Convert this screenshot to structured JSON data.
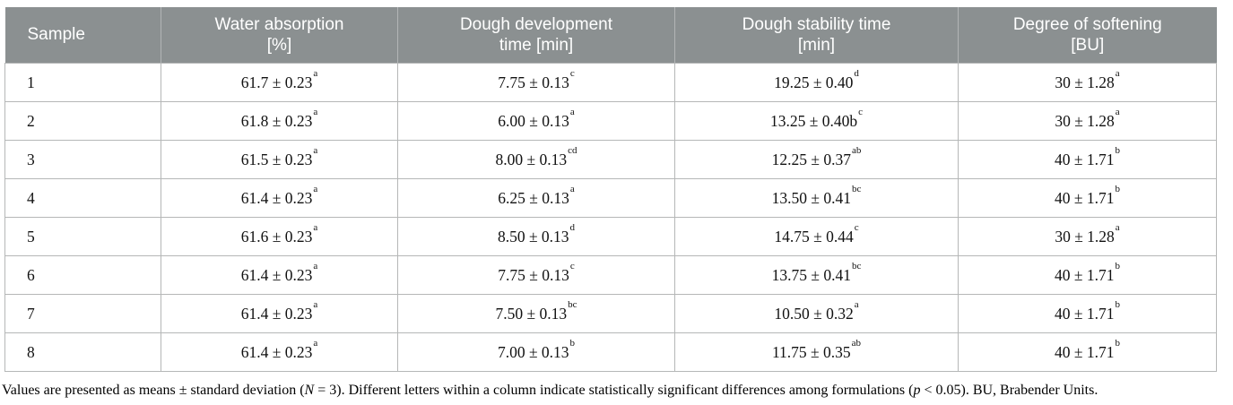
{
  "table": {
    "columns": [
      {
        "line1": "Sample",
        "line2": ""
      },
      {
        "line1": "Water absorption",
        "line2": "[%]"
      },
      {
        "line1": "Dough development",
        "line2": "time [min]"
      },
      {
        "line1": "Dough stability time",
        "line2": "[min]"
      },
      {
        "line1": "Degree of softening",
        "line2": "[BU]"
      }
    ],
    "rows": [
      {
        "sample": "1",
        "water": {
          "text": "61.7 ± 0.23",
          "sup": "a"
        },
        "development": {
          "text": "7.75 ± 0.13",
          "sup": "c"
        },
        "stability": {
          "text": "19.25 ± 0.40",
          "sup": "d"
        },
        "softening": {
          "text": "30 ± 1.28",
          "sup": "a"
        }
      },
      {
        "sample": "2",
        "water": {
          "text": "61.8 ± 0.23",
          "sup": "a"
        },
        "development": {
          "text": "6.00 ± 0.13",
          "sup": "a"
        },
        "stability": {
          "text": "13.25 ± 0.40b",
          "sup": "c"
        },
        "softening": {
          "text": "30 ± 1.28",
          "sup": "a"
        }
      },
      {
        "sample": "3",
        "water": {
          "text": "61.5 ± 0.23",
          "sup": "a"
        },
        "development": {
          "text": "8.00 ± 0.13",
          "sup": "cd"
        },
        "stability": {
          "text": "12.25 ± 0.37",
          "sup": "ab"
        },
        "softening": {
          "text": "40 ± 1.71",
          "sup": "b"
        }
      },
      {
        "sample": "4",
        "water": {
          "text": "61.4 ± 0.23",
          "sup": "a"
        },
        "development": {
          "text": "6.25 ± 0.13",
          "sup": "a"
        },
        "stability": {
          "text": "13.50 ± 0.41",
          "sup": "bc"
        },
        "softening": {
          "text": "40 ± 1.71",
          "sup": "b"
        }
      },
      {
        "sample": "5",
        "water": {
          "text": "61.6 ± 0.23",
          "sup": "a"
        },
        "development": {
          "text": "8.50 ± 0.13",
          "sup": "d"
        },
        "stability": {
          "text": "14.75 ± 0.44",
          "sup": "c"
        },
        "softening": {
          "text": "30 ± 1.28",
          "sup": "a"
        }
      },
      {
        "sample": "6",
        "water": {
          "text": "61.4 ± 0.23",
          "sup": "a"
        },
        "development": {
          "text": "7.75 ± 0.13",
          "sup": "c"
        },
        "stability": {
          "text": "13.75 ± 0.41",
          "sup": "bc"
        },
        "softening": {
          "text": "40 ± 1.71",
          "sup": "b"
        }
      },
      {
        "sample": "7",
        "water": {
          "text": "61.4 ± 0.23",
          "sup": "a"
        },
        "development": {
          "text": "7.50 ± 0.13",
          "sup": "bc"
        },
        "stability": {
          "text": "10.50 ± 0.32",
          "sup": "a"
        },
        "softening": {
          "text": "40 ± 1.71",
          "sup": "b"
        }
      },
      {
        "sample": "8",
        "water": {
          "text": "61.4 ± 0.23",
          "sup": "a"
        },
        "development": {
          "text": "7.00 ± 0.13",
          "sup": "b"
        },
        "stability": {
          "text": "11.75 ± 0.35",
          "sup": "ab"
        },
        "softening": {
          "text": "40 ± 1.71",
          "sup": "b"
        }
      }
    ]
  },
  "footnote": {
    "part1": "Values are presented as means ± standard deviation (",
    "var_n": "N",
    "part2": " = 3). Different letters within a column indicate statistically significant differences among formulations (",
    "var_p": "p",
    "part3": " < 0.05). BU, Brabender Units."
  },
  "colors": {
    "header_bg": "#8b9091",
    "header_text": "#ffffff",
    "border": "#b5b7b7"
  }
}
